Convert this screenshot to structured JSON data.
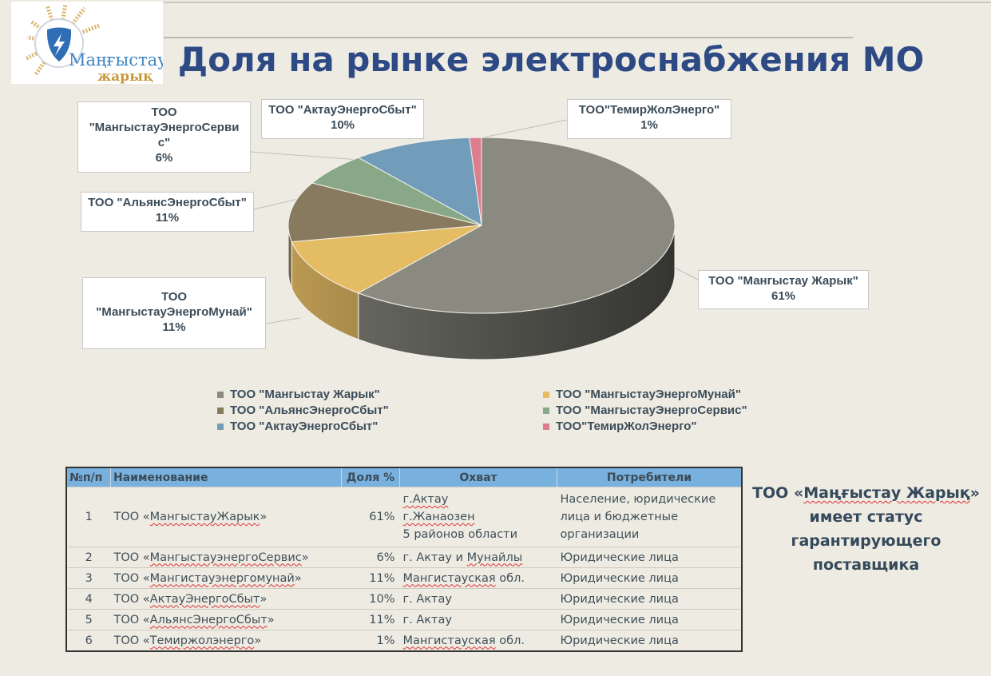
{
  "title": "Доля на рынке электроснабжения МО",
  "logo": {
    "text_top": "Маңғыстау",
    "text_bottom": "жарық"
  },
  "colors": {
    "gray": "#8a8a80",
    "yellow": "#e4bc64",
    "brown": "#877a5e",
    "green": "#89a888",
    "blue": "#729dba",
    "pink": "#dd7e8e",
    "title": "#2d4a84",
    "header": "#78b0de"
  },
  "chart_data": {
    "type": "pie",
    "style": "3d",
    "title": "",
    "slices": [
      {
        "name": "ТОО \"Мангыстау Жарык\"",
        "value": 61,
        "label": "61%",
        "color": "#8a8a80"
      },
      {
        "name": "ТОО \"МангыстауЭнергоМунай\"",
        "value": 11,
        "label": "11%",
        "color": "#e4bc64"
      },
      {
        "name": "ТОО \"АльянсЭнергоСбыт\"",
        "value": 11,
        "label": "11%",
        "color": "#877a5e"
      },
      {
        "name": "ТОО \"МангыстауЭнергоСервис\"",
        "value": 6,
        "label": "6%",
        "color": "#89a888"
      },
      {
        "name": "ТОО \"АктауЭнергоСбыт\"",
        "value": 10,
        "label": "10%",
        "color": "#729dba"
      },
      {
        "name": "ТОО\"ТемирЖолЭнерго\"",
        "value": 1,
        "label": "1%",
        "color": "#dd7e8e"
      }
    ],
    "data_labels": {
      "l0": {
        "name1": "ТОО \"Мангыстау Жарык\""
      },
      "l1": {
        "name1": "ТОО",
        "name2": "\"МангыстауЭнергоМунай\""
      },
      "l2": {
        "name1": "ТОО \"АльянсЭнергоСбыт\""
      },
      "l3": {
        "name1": "ТОО",
        "name2": "\"МангыстауЭнергоСерви",
        "name3": "с\""
      },
      "l4": {
        "name1": "ТОО \"АктауЭнергоСбыт\""
      },
      "l5": {
        "name1": "ТОО\"ТемирЖолЭнерго\""
      }
    },
    "legend_placement": "bottom"
  },
  "table": {
    "headers": [
      "№п/п",
      "Наименование",
      "Доля %",
      "Охват",
      "Потребители"
    ],
    "rows": [
      {
        "n": "1",
        "name_pre": "ТОО «",
        "name": "МангыстауЖарык",
        "name_post": "»",
        "share": "61%",
        "area": [
          "г.Актау",
          "г.Жанаозен",
          "5 районов области"
        ],
        "consumers": "Население, юридические лица и бюджетные организации"
      },
      {
        "n": "2",
        "name_pre": "ТОО «",
        "name": "МангыстауэнергоСервис",
        "name_post": "»",
        "share": "6%",
        "area_pre": "г. Актау и ",
        "area_ul": "Мунайлы",
        "area_post": "",
        "consumers": "Юридические лица"
      },
      {
        "n": "3",
        "name_pre": "ТОО «",
        "name": "Мангистауэнергомунай",
        "name_post": "»",
        "share": "11%",
        "area_pre": "",
        "area_ul": "Мангистауская",
        "area_post": " обл.",
        "consumers": "Юридические лица"
      },
      {
        "n": "4",
        "name_pre": "ТОО «",
        "name": "АктауЭнергоСбыт",
        "name_post": "»",
        "share": "10%",
        "area_pre": "г. Актау",
        "area_ul": "",
        "area_post": "",
        "consumers": "Юридические лица"
      },
      {
        "n": "5",
        "name_pre": "ТОО «",
        "name": "АльянсЭнергоСбыт",
        "name_post": "»",
        "share": "11%",
        "area_pre": "г. Актау",
        "area_ul": "",
        "area_post": "",
        "consumers": "Юридические лица"
      },
      {
        "n": "6",
        "name_pre": "ТОО «",
        "name": "Темиржолэнерго",
        "name_post": "»",
        "share": "1%",
        "area_pre": " ",
        "area_ul": "Мангистауская",
        "area_post": " обл.",
        "consumers": "Юридические лица"
      }
    ]
  },
  "status": {
    "line1_pre": "ТОО «",
    "line1_ul": "Маңғыстау Жарық",
    "line1_post": "»",
    "line2": "имеет статус",
    "line3": "гарантирующего",
    "line4": "поставщика"
  }
}
